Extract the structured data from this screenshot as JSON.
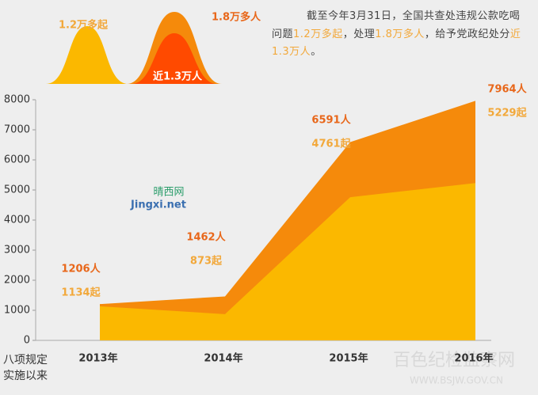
{
  "summary": {
    "bubble_cases": "1.2万多起",
    "bubble_people": "1.8万多人",
    "bubble_punished": "近1.3万人",
    "paragraph": [
      {
        "text": "截至今年3月31日，全国共查处违规公款吃喝问题",
        "hl": false
      },
      {
        "text": "1.2万多起",
        "hl": true
      },
      {
        "text": "，处理",
        "hl": false
      },
      {
        "text": "1.8万多人",
        "hl": true
      },
      {
        "text": "，给予党政纪处分",
        "hl": false
      },
      {
        "text": "近1.3万人",
        "hl": true
      },
      {
        "text": "。",
        "hl": false
      }
    ]
  },
  "watermarks": [
    "晴西网",
    "Jingxi.net",
    "百色纪检监察网",
    "WWW.BSJW.GOV.CN"
  ],
  "chart_data": {
    "type": "area",
    "x_label": "八项规定实施以来",
    "categories": [
      "2013年",
      "2014年",
      "2015年",
      "2016年"
    ],
    "series": [
      {
        "name": "人",
        "color": "#f58a0b",
        "label_color": "#e8671a",
        "values": [
          1206,
          1462,
          6591,
          7964
        ],
        "value_labels": [
          "1206人",
          "1462人",
          "6591人",
          "7964人"
        ]
      },
      {
        "name": "起",
        "color": "#fbb800",
        "label_color": "#f2a83a",
        "values": [
          1134,
          873,
          4761,
          5229
        ],
        "value_labels": [
          "1134起",
          "873起",
          "4761起",
          "5229起"
        ]
      }
    ],
    "ylim": [
      0,
      8000
    ],
    "yticks": [
      0,
      1000,
      2000,
      3000,
      4000,
      5000,
      6000,
      7000,
      8000
    ]
  }
}
